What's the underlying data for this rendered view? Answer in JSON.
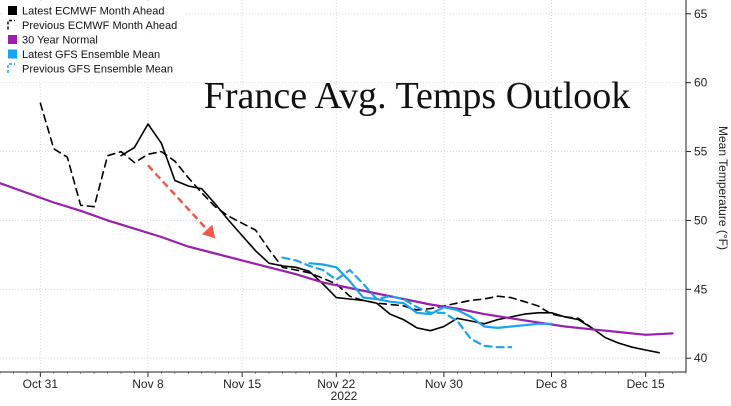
{
  "chart_data": {
    "type": "line",
    "title": "France Avg. Temps Outlook",
    "ylabel": "Mean Temperature (°F)",
    "xlabel": "",
    "year_label": "2022",
    "ylim": [
      39,
      66
    ],
    "xlim": [
      "2022-10-28",
      "2022-12-18"
    ],
    "yticks": [
      40,
      45,
      50,
      55,
      60,
      65
    ],
    "xticks": [
      {
        "label": "Oct 31",
        "date": "2022-10-31"
      },
      {
        "label": "Nov 8",
        "date": "2022-11-08"
      },
      {
        "label": "Nov 15",
        "date": "2022-11-15"
      },
      {
        "label": "Nov 22",
        "date": "2022-11-22"
      },
      {
        "label": "Nov 30",
        "date": "2022-11-30"
      },
      {
        "label": "Dec 8",
        "date": "2022-12-08"
      },
      {
        "label": "Dec 15",
        "date": "2022-12-15"
      }
    ],
    "legend_position": "top-left",
    "annotation": {
      "type": "arrow",
      "color": "#f05a4a",
      "from": [
        "2022-11-08",
        54.0
      ],
      "to": [
        "2022-11-13",
        48.7
      ]
    },
    "series": [
      {
        "name": "Latest ECMWF Month Ahead",
        "color": "#000000",
        "dash": "solid",
        "legend_marker": "filled",
        "points": [
          [
            "2022-11-06",
            54.7
          ],
          [
            "2022-11-07",
            55.3
          ],
          [
            "2022-11-08",
            57.0
          ],
          [
            "2022-11-09",
            55.6
          ],
          [
            "2022-11-10",
            52.9
          ],
          [
            "2022-11-11",
            52.5
          ],
          [
            "2022-11-12",
            52.3
          ],
          [
            "2022-11-13",
            51.2
          ],
          [
            "2022-11-14",
            50.0
          ],
          [
            "2022-11-15",
            48.9
          ],
          [
            "2022-11-16",
            47.8
          ],
          [
            "2022-11-17",
            46.9
          ],
          [
            "2022-11-18",
            46.7
          ],
          [
            "2022-11-19",
            46.6
          ],
          [
            "2022-11-20",
            46.3
          ],
          [
            "2022-11-21",
            45.4
          ],
          [
            "2022-11-22",
            44.4
          ],
          [
            "2022-11-23",
            44.3
          ],
          [
            "2022-11-24",
            44.2
          ],
          [
            "2022-11-25",
            44.0
          ],
          [
            "2022-11-26",
            43.2
          ],
          [
            "2022-11-27",
            42.8
          ],
          [
            "2022-11-28",
            42.2
          ],
          [
            "2022-11-29",
            42.0
          ],
          [
            "2022-11-30",
            42.3
          ],
          [
            "2022-12-01",
            42.9
          ],
          [
            "2022-12-02",
            42.7
          ],
          [
            "2022-12-03",
            42.5
          ],
          [
            "2022-12-04",
            42.8
          ],
          [
            "2022-12-05",
            43.0
          ],
          [
            "2022-12-06",
            43.2
          ],
          [
            "2022-12-07",
            43.3
          ],
          [
            "2022-12-08",
            43.3
          ],
          [
            "2022-12-09",
            43.0
          ],
          [
            "2022-12-10",
            42.8
          ],
          [
            "2022-12-11",
            42.2
          ],
          [
            "2022-12-12",
            41.5
          ],
          [
            "2022-12-13",
            41.1
          ],
          [
            "2022-12-14",
            40.8
          ],
          [
            "2022-12-15",
            40.6
          ],
          [
            "2022-12-16",
            40.4
          ]
        ]
      },
      {
        "name": "Previous ECMWF Month Ahead",
        "color": "#000000",
        "dash": "dashed",
        "legend_marker": "dashed",
        "points": [
          [
            "2022-10-31",
            58.5
          ],
          [
            "2022-11-01",
            55.2
          ],
          [
            "2022-11-02",
            54.6
          ],
          [
            "2022-11-03",
            51.1
          ],
          [
            "2022-11-04",
            51.0
          ],
          [
            "2022-11-05",
            54.7
          ],
          [
            "2022-11-06",
            55.0
          ],
          [
            "2022-11-07",
            54.2
          ],
          [
            "2022-11-08",
            54.8
          ],
          [
            "2022-11-09",
            55.0
          ],
          [
            "2022-11-10",
            54.3
          ],
          [
            "2022-11-11",
            53.1
          ],
          [
            "2022-11-12",
            52.0
          ],
          [
            "2022-11-13",
            51.0
          ],
          [
            "2022-11-14",
            50.3
          ],
          [
            "2022-11-15",
            49.8
          ],
          [
            "2022-11-16",
            49.3
          ],
          [
            "2022-11-17",
            47.9
          ],
          [
            "2022-11-18",
            46.6
          ],
          [
            "2022-11-19",
            46.4
          ],
          [
            "2022-11-20",
            46.2
          ],
          [
            "2022-11-21",
            45.8
          ],
          [
            "2022-11-22",
            45.4
          ],
          [
            "2022-11-23",
            44.5
          ],
          [
            "2022-11-24",
            44.2
          ],
          [
            "2022-11-25",
            44.0
          ],
          [
            "2022-11-26",
            43.9
          ],
          [
            "2022-11-27",
            43.8
          ],
          [
            "2022-11-28",
            43.5
          ],
          [
            "2022-11-29",
            43.6
          ],
          [
            "2022-11-30",
            43.8
          ],
          [
            "2022-12-01",
            44.0
          ],
          [
            "2022-12-02",
            44.2
          ],
          [
            "2022-12-03",
            44.3
          ],
          [
            "2022-12-04",
            44.5
          ],
          [
            "2022-12-05",
            44.4
          ],
          [
            "2022-12-06",
            44.1
          ],
          [
            "2022-12-07",
            43.8
          ],
          [
            "2022-12-08",
            43.2
          ],
          [
            "2022-12-09",
            43.0
          ],
          [
            "2022-12-10",
            42.9
          ],
          [
            "2022-12-11",
            42.2
          ]
        ]
      },
      {
        "name": "30 Year Normal",
        "color": "#9b1fae",
        "dash": "solid",
        "legend_marker": "filled",
        "points": [
          [
            "2022-10-28",
            52.7
          ],
          [
            "2022-10-30",
            52.0
          ],
          [
            "2022-11-01",
            51.3
          ],
          [
            "2022-11-03",
            50.7
          ],
          [
            "2022-11-05",
            50.0
          ],
          [
            "2022-11-07",
            49.4
          ],
          [
            "2022-11-09",
            48.8
          ],
          [
            "2022-11-11",
            48.1
          ],
          [
            "2022-11-13",
            47.6
          ],
          [
            "2022-11-15",
            47.1
          ],
          [
            "2022-11-17",
            46.6
          ],
          [
            "2022-11-19",
            46.1
          ],
          [
            "2022-11-21",
            45.5
          ],
          [
            "2022-11-23",
            45.1
          ],
          [
            "2022-11-25",
            44.7
          ],
          [
            "2022-11-27",
            44.3
          ],
          [
            "2022-11-29",
            43.9
          ],
          [
            "2022-12-01",
            43.6
          ],
          [
            "2022-12-03",
            43.2
          ],
          [
            "2022-12-05",
            42.9
          ],
          [
            "2022-12-07",
            42.6
          ],
          [
            "2022-12-09",
            42.3
          ],
          [
            "2022-12-11",
            42.1
          ],
          [
            "2022-12-13",
            41.9
          ],
          [
            "2022-12-15",
            41.7
          ],
          [
            "2022-12-17",
            41.8
          ]
        ]
      },
      {
        "name": "Latest GFS Ensemble Mean",
        "color": "#1aa3f0",
        "dash": "solid",
        "legend_marker": "filled",
        "points": [
          [
            "2022-11-20",
            46.9
          ],
          [
            "2022-11-21",
            46.8
          ],
          [
            "2022-11-22",
            46.6
          ],
          [
            "2022-11-23",
            45.6
          ],
          [
            "2022-11-24",
            44.4
          ],
          [
            "2022-11-25",
            44.3
          ],
          [
            "2022-11-26",
            44.1
          ],
          [
            "2022-11-27",
            44.0
          ],
          [
            "2022-11-28",
            43.3
          ],
          [
            "2022-11-29",
            43.2
          ],
          [
            "2022-11-30",
            43.7
          ],
          [
            "2022-12-01",
            43.5
          ],
          [
            "2022-12-02",
            43.0
          ],
          [
            "2022-12-03",
            42.3
          ],
          [
            "2022-12-04",
            42.2
          ],
          [
            "2022-12-05",
            42.3
          ],
          [
            "2022-12-06",
            42.4
          ],
          [
            "2022-12-07",
            42.5
          ],
          [
            "2022-12-08",
            42.5
          ]
        ]
      },
      {
        "name": "Previous GFS Ensemble Mean",
        "color": "#1aa3f0",
        "dash": "dashed",
        "legend_marker": "dashed",
        "points": [
          [
            "2022-11-18",
            47.3
          ],
          [
            "2022-11-19",
            47.1
          ],
          [
            "2022-11-20",
            46.7
          ],
          [
            "2022-11-21",
            46.4
          ],
          [
            "2022-11-22",
            45.7
          ],
          [
            "2022-11-23",
            46.4
          ],
          [
            "2022-11-24",
            45.4
          ],
          [
            "2022-11-25",
            44.3
          ],
          [
            "2022-11-26",
            44.5
          ],
          [
            "2022-11-27",
            44.3
          ],
          [
            "2022-11-28",
            43.7
          ],
          [
            "2022-11-29",
            43.3
          ],
          [
            "2022-11-30",
            43.3
          ],
          [
            "2022-12-01",
            42.7
          ],
          [
            "2022-12-02",
            41.4
          ],
          [
            "2022-12-03",
            40.9
          ],
          [
            "2022-12-04",
            40.8
          ],
          [
            "2022-12-05",
            40.8
          ]
        ]
      }
    ]
  }
}
